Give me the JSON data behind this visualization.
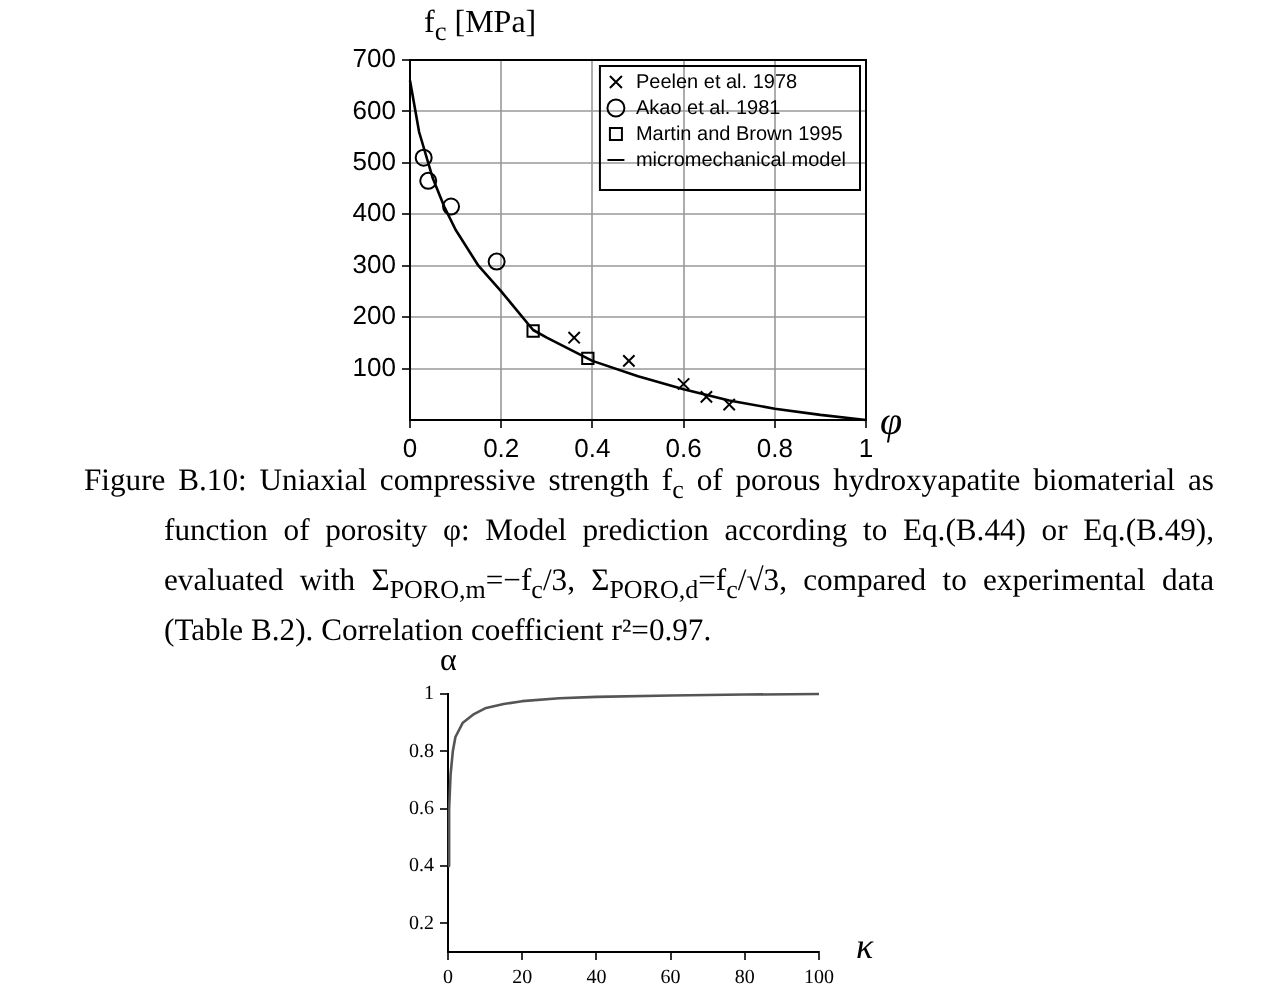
{
  "chart_data": [
    {
      "type": "scatter",
      "xlabel": "φ",
      "ylabel": "f$_{c}$ [MPa]",
      "xlim": [
        0,
        1
      ],
      "xticks": [
        0,
        0.2,
        0.4,
        0.6,
        0.8,
        1
      ],
      "ylim": [
        0,
        700
      ],
      "yticks": [
        100,
        200,
        300,
        400,
        500,
        600,
        700
      ],
      "grid": true,
      "legend": "top right",
      "series": [
        {
          "name": "Peelen et al. 1978",
          "color": "#000000",
          "marker": "cross",
          "x": [
            0.36,
            0.48,
            0.6,
            0.65,
            0.7
          ],
          "values": [
            160,
            115,
            70,
            45,
            30
          ]
        },
        {
          "name": "Akao et al. 1981",
          "color": "#000000",
          "marker": "circle",
          "x": [
            0.03,
            0.04,
            0.09,
            0.19
          ],
          "values": [
            510,
            465,
            415,
            308
          ]
        },
        {
          "name": "Martin and Brown 1995",
          "color": "#000000",
          "marker": "square",
          "x": [
            0.27,
            0.39
          ],
          "values": [
            173,
            120
          ]
        },
        {
          "name": "micromechanical model",
          "type": "line",
          "color": "#000000",
          "marker": "none",
          "x": [
            0,
            0.02,
            0.05,
            0.075,
            0.1,
            0.15,
            0.2,
            0.27,
            0.3,
            0.4,
            0.5,
            0.6,
            0.7,
            0.8,
            0.9,
            1
          ],
          "values": [
            660,
            560,
            470,
            415,
            370,
            300,
            250,
            175,
            160,
            115,
            85,
            60,
            38,
            22,
            10,
            0
          ]
        }
      ],
      "annotations": [
        "Figure B.10: Uniaxial compressive strength f$_{c}$ of porous hydroxyapatite biomaterial as function of porosity φ: Model prediction according to Eq.(B.44) or Eq.(B.49), evaluated with Σ$_{PORO,m}$=−f$_{c}$/3, Σ$_{PORO,d}$=f$_{c}$/√3, compared to experimental data (Table B.2). Correlation coefficient r²=0.97."
      ]
    },
    {
      "type": "line",
      "xlabel": "κ",
      "ylabel": "α",
      "xlim": [
        0,
        100
      ],
      "xticks": [
        0,
        20,
        40,
        60,
        80,
        100
      ],
      "ylim": [
        0.1,
        1
      ],
      "yticks": [
        0.2,
        0.4,
        0.6,
        0.8,
        1
      ],
      "series": [
        {
          "color": "#555555",
          "marker": "none",
          "x": [
            0,
            0.3,
            0.7,
            1.3,
            2,
            4,
            7,
            10,
            15,
            20,
            30,
            40,
            60,
            80,
            100
          ],
          "values": [
            0.4,
            0.6,
            0.72,
            0.8,
            0.85,
            0.9,
            0.93,
            0.95,
            0.965,
            0.975,
            0.985,
            0.99,
            0.995,
            0.998,
            1
          ]
        }
      ]
    }
  ]
}
